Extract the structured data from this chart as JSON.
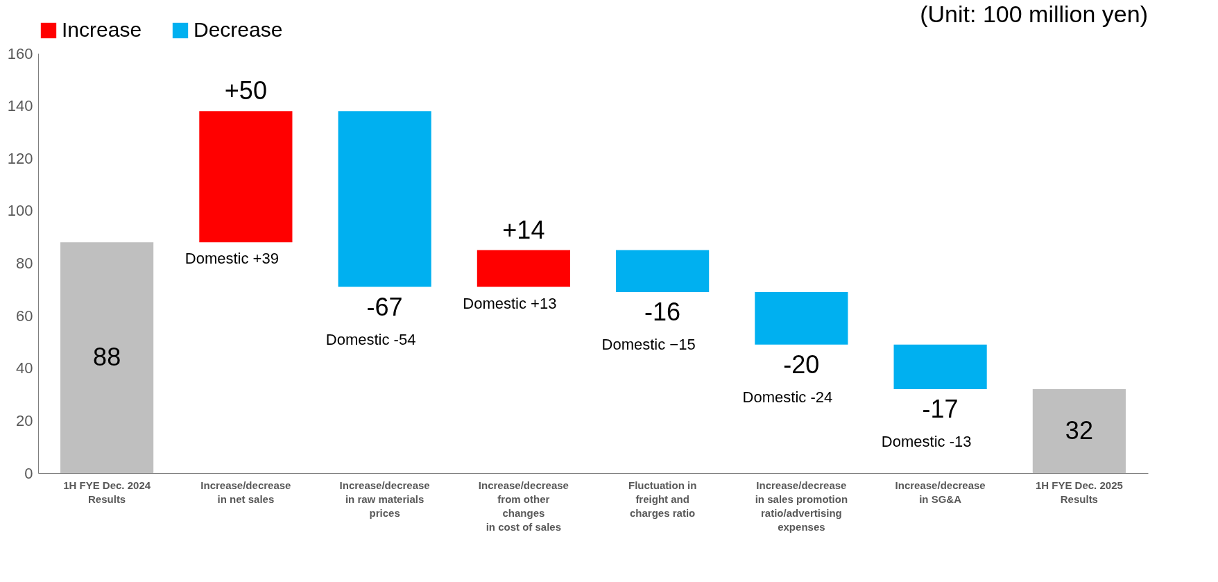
{
  "chart_data": {
    "type": "bar",
    "categories": [
      "1H FYE Dec. 2024\nResults",
      "Increase/decrease\nin net sales",
      "Increase/decrease\nin raw materials\nprices",
      "Increase/decrease\nfrom other\nchanges\nin cost of sales",
      "Fluctuation in\nfreight and\ncharges ratio",
      "Increase/decrease\nin sales promotion\nratio/advertising\nexpenses",
      "Increase/decrease\nin SG&A",
      "1H FYE Dec. 2025\nResults"
    ],
    "series": [
      {
        "color": "#bfbfbf",
        "values": [
          88,
          null,
          null,
          null,
          null,
          null,
          null,
          32
        ],
        "base": [
          0,
          null,
          null,
          null,
          null,
          null,
          null,
          0
        ],
        "value_labels": [
          "88",
          null,
          null,
          null,
          null,
          null,
          null,
          "32"
        ]
      },
      {
        "name": "Increase",
        "color": "#ff0000",
        "values": [
          null,
          50,
          null,
          14,
          null,
          null,
          null,
          null
        ],
        "base": [
          null,
          88,
          null,
          71,
          null,
          null,
          null,
          null
        ],
        "value_labels": [
          null,
          "+50",
          null,
          "+14",
          null,
          null,
          null,
          null
        ]
      },
      {
        "name": "Decrease",
        "color": "#00b0f0",
        "values": [
          null,
          null,
          -67,
          null,
          -16,
          -20,
          -17,
          null
        ],
        "base": [
          null,
          null,
          138,
          null,
          85,
          69,
          49,
          null
        ],
        "value_labels": [
          null,
          null,
          "-67",
          null,
          "-16",
          "-20",
          "-17",
          null
        ]
      }
    ],
    "ylim": [
      0,
      160
    ],
    "yticks": [
      0,
      20,
      40,
      60,
      80,
      100,
      120,
      140,
      160
    ],
    "legend": "top",
    "grid": false,
    "annotations": [
      "(Unit: 100 million yen)",
      "Domestic +39",
      "Domestic -54",
      "Domestic +13",
      "Domestic −15",
      "Domestic -24",
      "Domestic -13"
    ]
  }
}
